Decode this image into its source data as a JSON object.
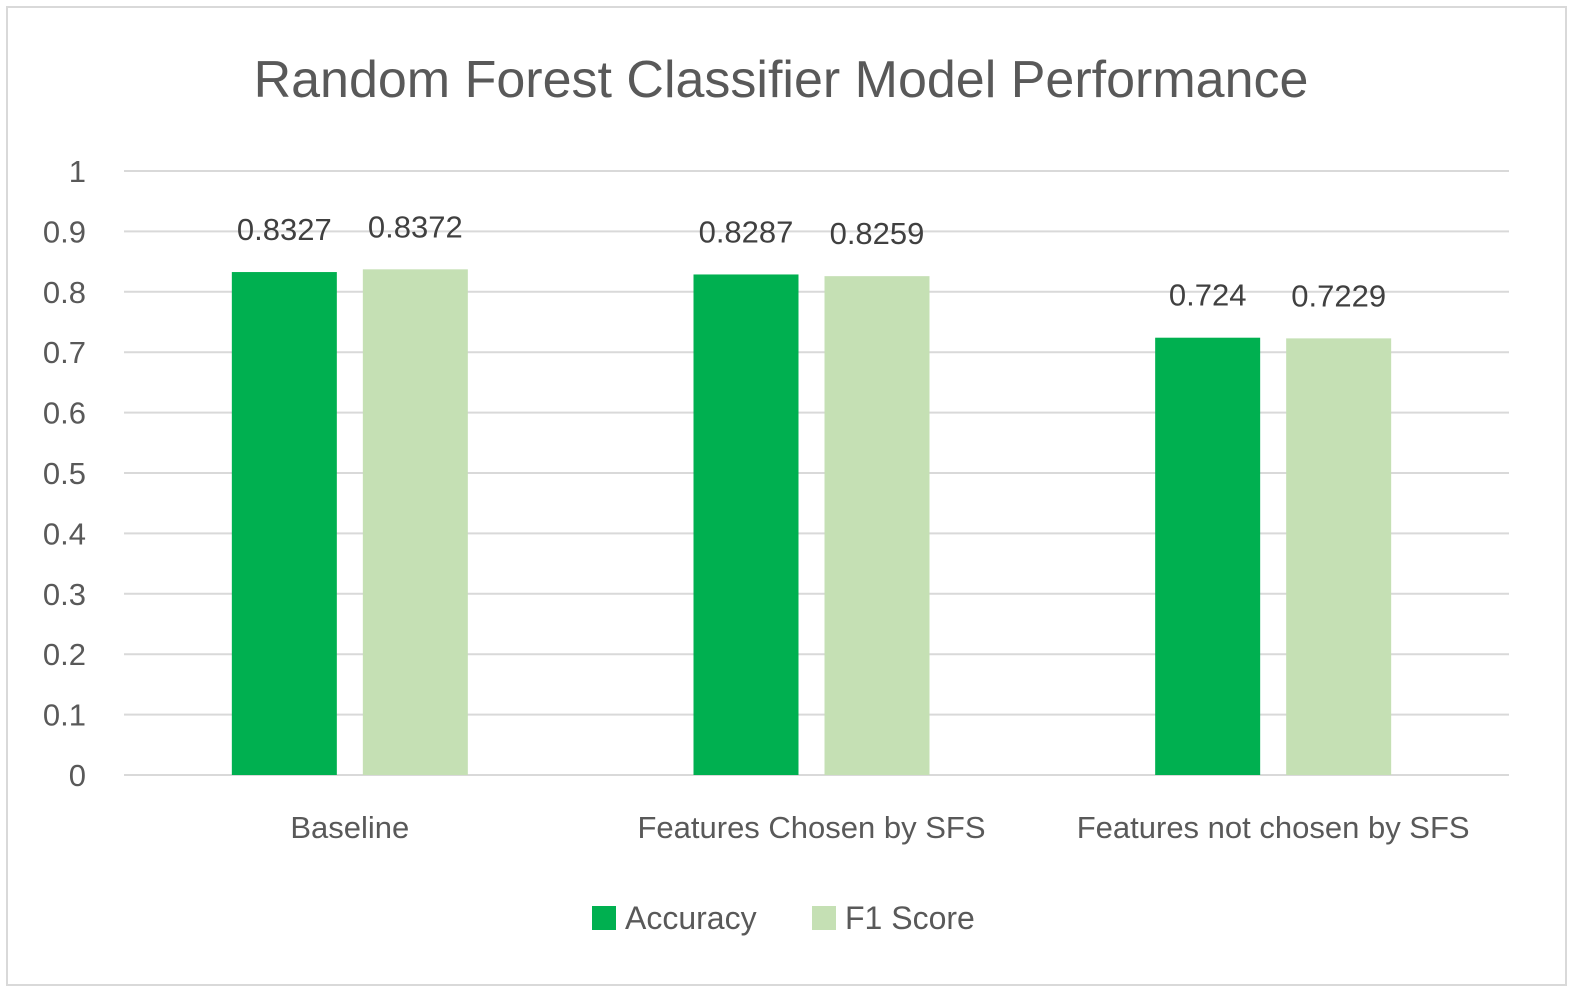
{
  "chart_data": {
    "type": "bar",
    "title": "Random Forest Classifier Model Performance",
    "xlabel": "",
    "ylabel": "",
    "categories": [
      "Baseline",
      "Features Chosen by SFS",
      "Features not chosen by SFS"
    ],
    "series": [
      {
        "name": "Accuracy",
        "values": [
          0.8327,
          0.8287,
          0.724
        ],
        "labels": [
          "0.8327",
          "0.8287",
          "0.724"
        ],
        "color": "#00b050"
      },
      {
        "name": "F1 Score",
        "values": [
          0.8372,
          0.8259,
          0.7229
        ],
        "labels": [
          "0.8372",
          "0.8259",
          "0.7229"
        ],
        "color": "#c5e0b4"
      }
    ],
    "ylim": [
      0,
      1
    ],
    "yticks": [
      "0",
      "0.1",
      "0.2",
      "0.3",
      "0.4",
      "0.5",
      "0.6",
      "0.7",
      "0.8",
      "0.9",
      "1"
    ],
    "grid": true,
    "legend": "bottom",
    "gridColor": "#d9d9d9",
    "textColor": "#595959"
  }
}
